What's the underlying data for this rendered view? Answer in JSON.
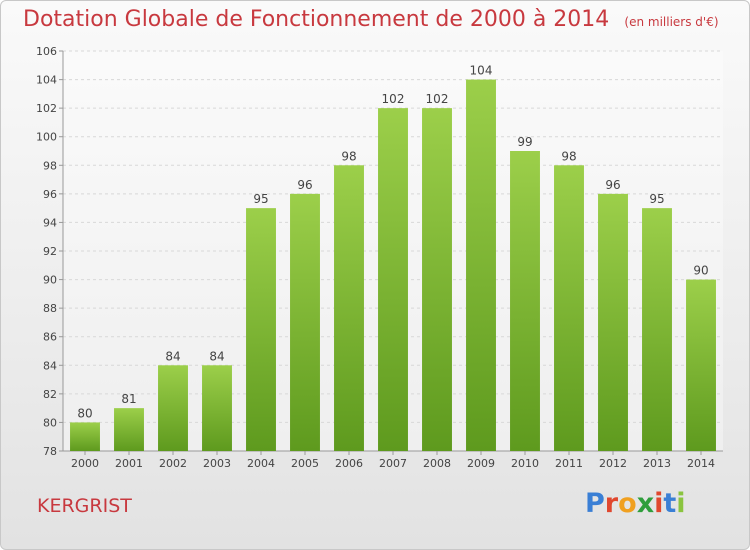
{
  "header": {
    "title": "Dotation Globale de Fonctionnement de 2000 à 2014",
    "unit": "(en milliers d'€)"
  },
  "footer": {
    "commune": "KERGRIST",
    "logo_letters": [
      "P",
      "r",
      "o",
      "x",
      "i",
      "t",
      "i"
    ],
    "logo_colors": [
      "#3a7fd5",
      "#e0472e",
      "#f0a020",
      "#2f9e3c",
      "#e0472e",
      "#3a7fd5",
      "#8ac43f"
    ]
  },
  "chart_data": {
    "type": "bar",
    "title": "Dotation Globale de Fonctionnement de 2000 à 2014",
    "subtitle": "(en milliers d'€)",
    "categories": [
      "2000",
      "2001",
      "2002",
      "2003",
      "2004",
      "2005",
      "2006",
      "2007",
      "2008",
      "2009",
      "2010",
      "2011",
      "2012",
      "2013",
      "2014"
    ],
    "values": [
      80,
      81,
      84,
      84,
      95,
      96,
      98,
      102,
      102,
      104,
      99,
      98,
      96,
      95,
      90
    ],
    "ylim": [
      78,
      106
    ],
    "yticks": [
      78,
      80,
      82,
      84,
      86,
      88,
      90,
      92,
      94,
      96,
      98,
      100,
      102,
      104,
      106
    ],
    "grid": true,
    "bar_color_top": "#9ccf4a",
    "bar_color_bottom": "#5e9a1e",
    "label_color": "#444444",
    "grid_color": "#d8d8d8"
  }
}
